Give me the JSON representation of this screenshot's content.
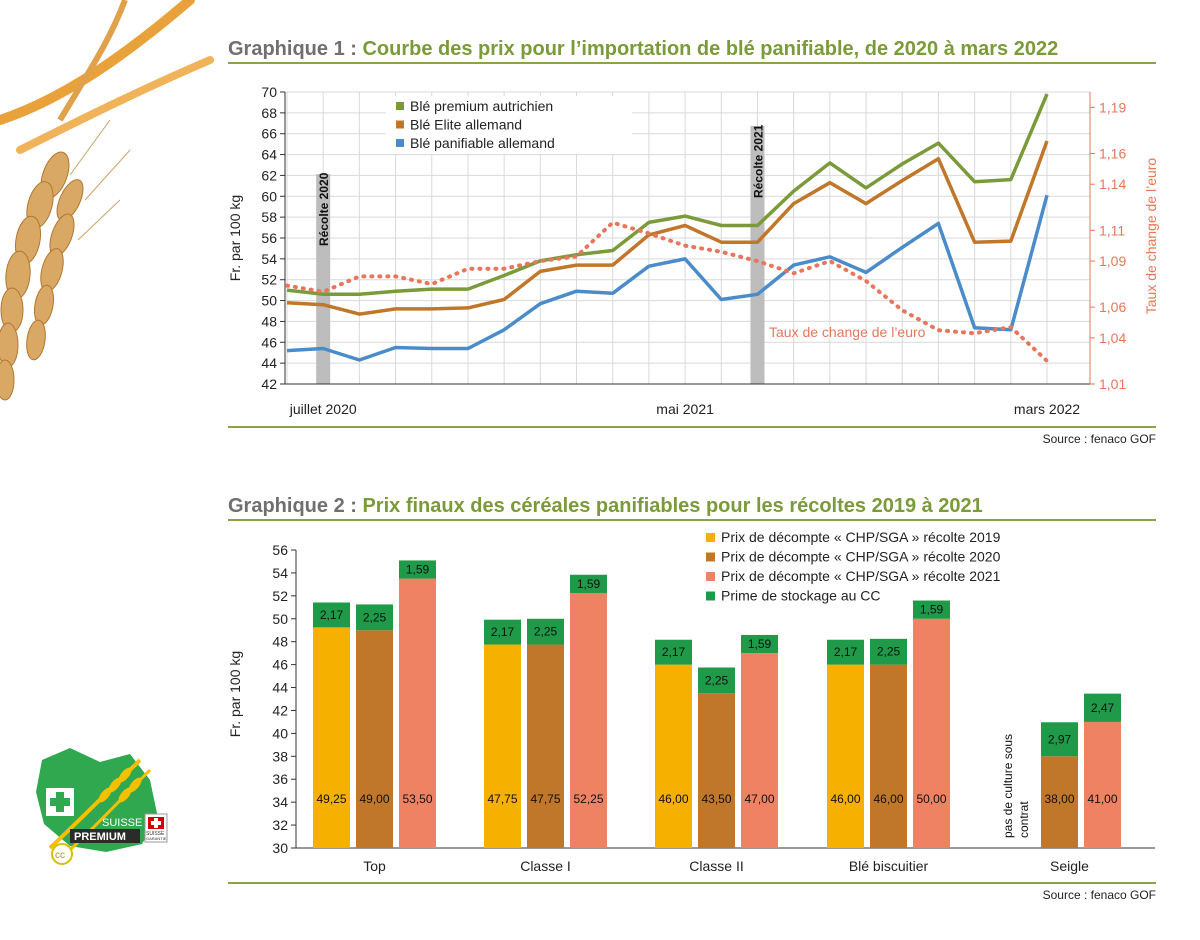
{
  "logo": {
    "text_suisse": "SUISSE",
    "text_premium": "PREMIUM",
    "text_badge": "SUISSE",
    "text_badge_sub": "GARANTIE",
    "text_cc": "cc",
    "icon": "suisse-premium-logo"
  },
  "figure1": {
    "number": "Graphique 1 :",
    "title": "Courbe des prix pour l’importation de blé panifiable, de 2020 à mars 2022",
    "source": "Source : fenaco GOF"
  },
  "figure2": {
    "number": "Graphique 2 :",
    "title": "Prix finaux des céréales panifiables pour les récoltes 2019 à 2021",
    "source": "Source : fenaco GOF"
  },
  "chart_data": [
    {
      "type": "line",
      "ylabel": "Fr. par 100 kg",
      "y2label": "Taux de change de l’euro",
      "ylim": [
        42,
        70
      ],
      "yticks": [
        42,
        44,
        46,
        48,
        50,
        52,
        54,
        56,
        58,
        60,
        62,
        64,
        66,
        68,
        70
      ],
      "y2lim": [
        1.01,
        1.2
      ],
      "y2ticks": [
        "1,01",
        "1,04",
        "1,06",
        "1,09",
        "1,11",
        "1,14",
        "1,16",
        "1,19"
      ],
      "y2tick_values": [
        1.01,
        1.04,
        1.06,
        1.09,
        1.11,
        1.14,
        1.16,
        1.19
      ],
      "x": [
        "2020-06",
        "2020-07",
        "2020-08",
        "2020-09",
        "2020-10",
        "2020-11",
        "2020-12",
        "2021-01",
        "2021-02",
        "2021-03",
        "2021-04",
        "2021-05",
        "2021-06",
        "2021-07",
        "2021-08",
        "2021-09",
        "2021-10",
        "2021-11",
        "2021-12",
        "2022-01",
        "2022-02",
        "2022-03"
      ],
      "xtick_labels": [
        {
          "x": "2020-07",
          "label": "juillet 2020"
        },
        {
          "x": "2021-05",
          "label": "mai 2021"
        },
        {
          "x": "2022-03",
          "label": "mars 2022"
        }
      ],
      "grid": true,
      "legend": "top-left",
      "series": [
        {
          "name": "Blé premium autrichien",
          "color": "#7b9a3a",
          "axis": "left",
          "values": [
            51.0,
            50.6,
            50.6,
            50.9,
            51.1,
            51.1,
            52.4,
            53.8,
            54.4,
            54.8,
            57.5,
            58.1,
            57.2,
            57.2,
            60.5,
            63.2,
            60.8,
            63.1,
            65.1,
            61.4,
            61.6,
            69.8
          ]
        },
        {
          "name": "Blé Elite allemand",
          "color": "#c0772a",
          "axis": "left",
          "values": [
            49.8,
            49.6,
            48.7,
            49.2,
            49.2,
            49.3,
            50.1,
            52.8,
            53.4,
            53.4,
            56.3,
            57.2,
            55.6,
            55.6,
            59.3,
            61.3,
            59.3,
            61.5,
            63.6,
            55.6,
            55.7,
            65.3
          ]
        },
        {
          "name": "Blé panifiable allemand",
          "color": "#4a8cc9",
          "axis": "left",
          "values": [
            45.2,
            45.4,
            44.3,
            45.5,
            45.4,
            45.4,
            47.2,
            49.7,
            50.9,
            50.7,
            53.3,
            54.0,
            50.1,
            50.6,
            53.4,
            54.2,
            52.7,
            55.1,
            57.4,
            47.4,
            47.2,
            60.1
          ]
        },
        {
          "name": "Taux de change de l’euro",
          "color": "#e8765a",
          "axis": "right",
          "dashed": true,
          "values": [
            1.074,
            1.07,
            1.08,
            1.08,
            1.075,
            1.085,
            1.085,
            1.09,
            1.093,
            1.115,
            1.108,
            1.1,
            1.096,
            1.09,
            1.082,
            1.09,
            1.077,
            1.058,
            1.045,
            1.043,
            1.047,
            1.025
          ]
        }
      ],
      "annotations": [
        {
          "label": "Récolte 2020",
          "x": "2020-07"
        },
        {
          "label": "Récolte 2021",
          "x": "2021-07"
        },
        {
          "label": "Taux de change de l’euro",
          "series": "Taux de change de l’euro"
        }
      ]
    },
    {
      "type": "bar",
      "stacked": true,
      "ylabel": "Fr. par 100 kg",
      "ylim": [
        30,
        56
      ],
      "yticks": [
        30,
        32,
        34,
        36,
        38,
        40,
        42,
        44,
        46,
        48,
        50,
        52,
        54,
        56
      ],
      "grid": false,
      "legend": "top-right",
      "categories": [
        "Top",
        "Classe I",
        "Classe II",
        "Blé biscuitier",
        "Seigle"
      ],
      "series": [
        {
          "name": "Prix de décompte « CHP/SGA » récolte 2019",
          "color": "#f5b000",
          "values": [
            49.25,
            47.75,
            46.0,
            46.0,
            null
          ],
          "labels": [
            "49,25",
            "47,75",
            "46,00",
            "46,00",
            ""
          ],
          "premium": [
            2.17,
            2.17,
            2.17,
            2.17,
            null
          ],
          "premium_labels": [
            "2,17",
            "2,17",
            "2,17",
            "2,17",
            ""
          ]
        },
        {
          "name": "Prix de décompte « CHP/SGA » récolte 2020",
          "color": "#c0772a",
          "values": [
            49.0,
            47.75,
            43.5,
            46.0,
            38.0
          ],
          "labels": [
            "49,00",
            "47,75",
            "43,50",
            "46,00",
            "38,00"
          ],
          "premium": [
            2.25,
            2.25,
            2.25,
            2.25,
            2.97
          ],
          "premium_labels": [
            "2,25",
            "2,25",
            "2,25",
            "2,25",
            "2,97"
          ]
        },
        {
          "name": "Prix de décompte « CHP/SGA » récolte 2021",
          "color": "#ef8262",
          "values": [
            53.5,
            52.25,
            47.0,
            50.0,
            41.0
          ],
          "labels": [
            "53,50",
            "52,25",
            "47,00",
            "50,00",
            "41,00"
          ],
          "premium": [
            1.59,
            1.59,
            1.59,
            1.59,
            2.47
          ],
          "premium_labels": [
            "1,59",
            "1,59",
            "1,59",
            "1,59",
            "2,47"
          ]
        },
        {
          "name": "Prime de stockage au CC",
          "color": "#1f9a48"
        }
      ],
      "annotations": [
        {
          "label": "pas de culture sous contrat",
          "category": "Seigle"
        }
      ]
    }
  ]
}
